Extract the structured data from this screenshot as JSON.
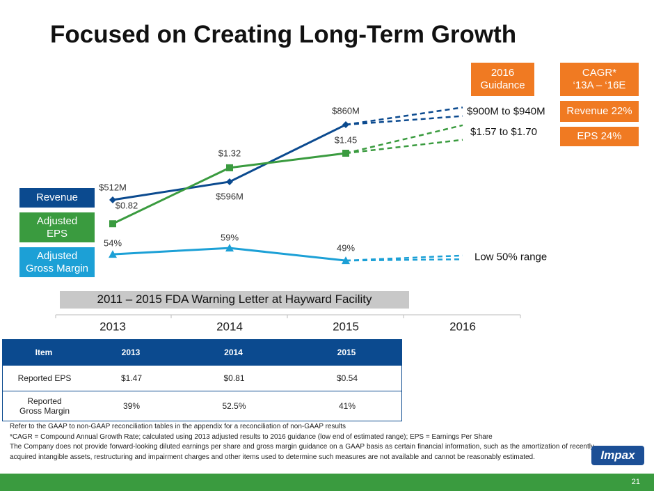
{
  "title": "Focused on Creating Long-Term Growth",
  "chart_data": {
    "type": "line",
    "categories": [
      "2013",
      "2014",
      "2015",
      "2016"
    ],
    "banner": "2011 – 2015 FDA Warning Letter at Hayward Facility",
    "series": [
      {
        "name": "Revenue",
        "color": "#0b4a8f",
        "marker": "diamond",
        "values": [
          512,
          596,
          860,
          null
        ],
        "value_labels": [
          "$512M",
          "$596M",
          "$860M",
          null
        ],
        "ylim": [
          148,
          1018
        ],
        "guidance": {
          "low": 900,
          "high": 940,
          "label": "$900M to $940M"
        }
      },
      {
        "name": "Adjusted\nEPS",
        "color": "#3a9b3f",
        "marker": "square",
        "values": [
          0.82,
          1.32,
          1.45,
          null
        ],
        "value_labels": [
          "$0.82",
          "$1.32",
          "$1.45",
          null
        ],
        "ylim": [
          0.33,
          2.01
        ],
        "guidance": {
          "low": 1.57,
          "high": 1.7,
          "label": "$1.57 to $1.70"
        }
      },
      {
        "name": "Adjusted\nGross Margin",
        "color": "#1ca0d6",
        "marker": "triangle",
        "values": [
          54,
          59,
          49,
          null
        ],
        "value_labels": [
          "54%",
          "59%",
          "49%",
          null
        ],
        "ylim": [
          34.6,
          184.6
        ],
        "guidance": {
          "low": 50,
          "high": 53,
          "label": "Low 50% range"
        }
      }
    ]
  },
  "guidance_header": "2016\nGuidance",
  "cagr": {
    "header": "CAGR*\n‘13A – ‘16E",
    "items": [
      "Revenue 22%",
      "EPS 24%"
    ]
  },
  "table": {
    "header": [
      "Item",
      "2013",
      "2014",
      "2015"
    ],
    "rows": [
      [
        "Reported EPS",
        "$1.47",
        "$0.81",
        "$0.54"
      ],
      [
        "Reported\nGross Margin",
        "39%",
        "52.5%",
        "41%"
      ]
    ]
  },
  "footnotes": [
    "Refer to the GAAP to non-GAAP reconciliation tables in the appendix for a reconciliation of non-GAAP results",
    "*CAGR = Compound Annual Growth Rate; calculated using 2013 adjusted results to 2016 guidance (low end of estimated range); EPS = Earnings Per Share",
    "The Company does not provide forward-looking diluted earnings per share and gross margin guidance on a GAAP basis as certain financial information, such as the amortization of recently acquired intangible assets, restructuring and impairment charges and other items used to determine such measures are not available and cannot be reasonably estimated."
  ],
  "logo": "Impax",
  "page_number": "21"
}
